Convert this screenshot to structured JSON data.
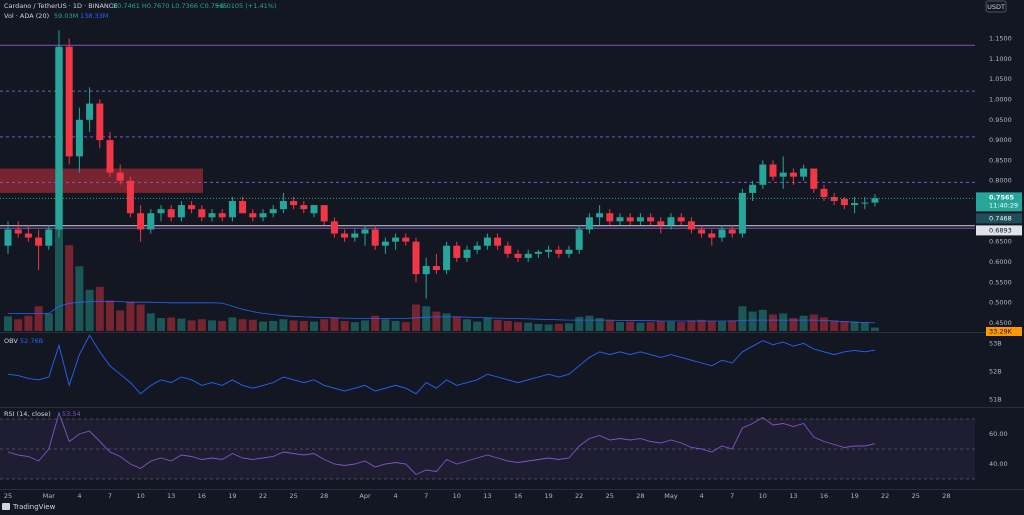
{
  "chart_data": [
    {
      "type": "candlestick",
      "title": "Cardano / TetherUS · 1D · BINANCE",
      "legend": {
        "ohlc": "O0.7461 H0.7670 L0.7366 C0.7565",
        "change": "+0.0105 (+1.41%)",
        "volume": "Vol · ADA (20)",
        "volume_value": "59.03M",
        "volume_ma_value": "138.33M"
      },
      "unit": "USDT",
      "categories": [
        "25",
        null,
        null,
        null,
        "Mar",
        null,
        null,
        "4",
        null,
        null,
        "7",
        null,
        null,
        "10",
        null,
        null,
        "13",
        null,
        null,
        "16",
        null,
        null,
        "19",
        null,
        null,
        "22",
        null,
        null,
        "25",
        null,
        null,
        "28",
        null,
        null,
        null,
        "Apr",
        null,
        null,
        "4",
        null,
        null,
        "7",
        null,
        null,
        "10",
        null,
        null,
        "13",
        null,
        null,
        "16",
        null,
        null,
        "19",
        null,
        null,
        "22",
        null,
        null,
        "25",
        null,
        null,
        "28",
        null,
        null,
        "May",
        null,
        null,
        "4",
        null,
        null,
        "7",
        null,
        null,
        "10",
        null,
        null,
        "13",
        null,
        null,
        "16",
        null,
        null,
        "19",
        null,
        null,
        "22",
        null,
        null,
        "25",
        null,
        null,
        "28"
      ],
      "open": [
        0.64,
        0.68,
        0.67,
        0.66,
        0.64,
        0.68,
        1.13,
        0.86,
        0.95,
        0.99,
        0.9,
        0.82,
        0.8,
        0.72,
        0.68,
        0.72,
        0.73,
        0.71,
        0.74,
        0.73,
        0.71,
        0.72,
        0.71,
        0.75,
        0.72,
        0.71,
        0.72,
        0.73,
        0.75,
        0.74,
        0.72,
        0.74,
        0.7,
        0.67,
        0.66,
        0.67,
        0.68,
        0.64,
        0.65,
        0.66,
        0.65,
        0.57,
        0.59,
        0.58,
        0.64,
        0.61,
        0.63,
        0.64,
        0.66,
        0.64,
        0.62,
        0.61,
        0.62,
        0.625,
        0.63,
        0.62,
        0.63,
        0.68,
        0.71,
        0.72,
        0.7,
        0.71,
        0.7,
        0.71,
        0.7,
        0.69,
        0.71,
        0.7,
        0.68,
        0.67,
        0.66,
        0.68,
        0.67,
        0.77,
        0.79,
        0.84,
        0.81,
        0.82,
        0.81,
        0.83,
        0.78,
        0.76,
        0.755,
        0.74,
        0.745,
        0.7461,
        null,
        null,
        null,
        null,
        null,
        null,
        null
      ],
      "high": [
        0.7,
        0.7,
        0.69,
        0.68,
        0.69,
        1.17,
        1.15,
        0.98,
        1.03,
        1.0,
        0.92,
        0.84,
        0.81,
        0.74,
        0.73,
        0.74,
        0.74,
        0.75,
        0.75,
        0.74,
        0.73,
        0.73,
        0.76,
        0.76,
        0.73,
        0.73,
        0.74,
        0.77,
        0.76,
        0.75,
        0.74,
        0.74,
        0.71,
        0.68,
        0.68,
        0.69,
        0.69,
        0.66,
        0.67,
        0.67,
        0.66,
        0.61,
        0.62,
        0.65,
        0.65,
        0.64,
        0.65,
        0.67,
        0.67,
        0.65,
        0.63,
        0.63,
        0.63,
        0.64,
        0.64,
        0.64,
        0.69,
        0.72,
        0.74,
        0.73,
        0.72,
        0.72,
        0.72,
        0.72,
        0.71,
        0.72,
        0.72,
        0.71,
        0.69,
        0.68,
        0.69,
        0.69,
        0.78,
        0.8,
        0.85,
        0.85,
        0.86,
        0.83,
        0.84,
        0.83,
        0.79,
        0.77,
        0.76,
        0.76,
        0.76,
        0.767,
        null,
        null,
        null,
        null,
        null,
        null,
        null
      ],
      "low": [
        0.62,
        0.66,
        0.65,
        0.58,
        0.63,
        0.66,
        0.84,
        0.82,
        0.92,
        0.88,
        0.81,
        0.79,
        0.71,
        0.65,
        0.67,
        0.7,
        0.7,
        0.7,
        0.72,
        0.7,
        0.7,
        0.7,
        0.7,
        0.72,
        0.7,
        0.7,
        0.71,
        0.72,
        0.73,
        0.72,
        0.71,
        0.69,
        0.66,
        0.65,
        0.65,
        0.64,
        0.63,
        0.62,
        0.63,
        0.64,
        0.55,
        0.51,
        0.57,
        0.57,
        0.6,
        0.6,
        0.62,
        0.63,
        0.63,
        0.61,
        0.6,
        0.6,
        0.61,
        0.61,
        0.61,
        0.61,
        0.62,
        0.67,
        0.69,
        0.69,
        0.69,
        0.69,
        0.69,
        0.69,
        0.67,
        0.68,
        0.69,
        0.67,
        0.66,
        0.64,
        0.65,
        0.66,
        0.66,
        0.75,
        0.78,
        0.8,
        0.78,
        0.79,
        0.8,
        0.77,
        0.75,
        0.74,
        0.73,
        0.72,
        0.73,
        0.7366,
        null,
        null,
        null,
        null,
        null,
        null,
        null
      ],
      "close": [
        0.68,
        0.67,
        0.66,
        0.64,
        0.68,
        1.13,
        0.86,
        0.95,
        0.99,
        0.9,
        0.82,
        0.8,
        0.72,
        0.68,
        0.72,
        0.73,
        0.71,
        0.74,
        0.73,
        0.71,
        0.72,
        0.71,
        0.75,
        0.72,
        0.71,
        0.72,
        0.73,
        0.75,
        0.74,
        0.73,
        0.74,
        0.7,
        0.67,
        0.66,
        0.67,
        0.68,
        0.64,
        0.65,
        0.66,
        0.65,
        0.57,
        0.59,
        0.58,
        0.64,
        0.61,
        0.63,
        0.64,
        0.66,
        0.64,
        0.62,
        0.61,
        0.62,
        0.625,
        0.63,
        0.62,
        0.63,
        0.68,
        0.71,
        0.72,
        0.7,
        0.71,
        0.7,
        0.71,
        0.7,
        0.69,
        0.71,
        0.7,
        0.68,
        0.67,
        0.66,
        0.68,
        0.67,
        0.77,
        0.79,
        0.84,
        0.81,
        0.82,
        0.81,
        0.83,
        0.78,
        0.76,
        0.75,
        0.74,
        0.745,
        0.7461,
        0.7565,
        null,
        null,
        null,
        null,
        null,
        null,
        null
      ],
      "volume": [
        250,
        200,
        260,
        420,
        300,
        4800,
        1460,
        1100,
        700,
        750,
        520,
        350,
        500,
        450,
        300,
        220,
        230,
        210,
        180,
        200,
        180,
        170,
        230,
        200,
        190,
        160,
        170,
        200,
        180,
        170,
        160,
        200,
        230,
        170,
        150,
        180,
        260,
        200,
        170,
        150,
        450,
        420,
        330,
        300,
        250,
        200,
        160,
        230,
        190,
        170,
        150,
        140,
        120,
        110,
        120,
        130,
        240,
        260,
        220,
        180,
        150,
        160,
        140,
        150,
        170,
        160,
        150,
        180,
        190,
        170,
        160,
        180,
        420,
        330,
        360,
        280,
        300,
        220,
        260,
        280,
        230,
        180,
        170,
        160,
        150,
        59.03,
        null,
        null,
        null,
        null,
        null,
        null,
        null
      ],
      "volume_ma": [
        300,
        300,
        300,
        300,
        300,
        420,
        470,
        490,
        500,
        500,
        500,
        500,
        490,
        490,
        490,
        485,
        480,
        480,
        480,
        480,
        480,
        475,
        420,
        370,
        330,
        300,
        280,
        260,
        250,
        240,
        235,
        230,
        225,
        220,
        215,
        215,
        215,
        215,
        215,
        215,
        225,
        235,
        240,
        240,
        240,
        235,
        230,
        225,
        220,
        215,
        210,
        205,
        200,
        195,
        190,
        185,
        185,
        185,
        185,
        185,
        180,
        180,
        175,
        175,
        170,
        170,
        170,
        170,
        170,
        170,
        170,
        170,
        180,
        185,
        185,
        185,
        185,
        185,
        185,
        185,
        180,
        170,
        160,
        150,
        145,
        138.33,
        null,
        null,
        null,
        null,
        null,
        null,
        null
      ],
      "up_color": "#26a69a",
      "down_color": "#f23645",
      "volume_ma_color": "#2962ff",
      "ylim": [
        0.43,
        1.245
      ],
      "yticks": [
        {
          "value": 1.15,
          "label": "1.1500"
        },
        {
          "value": 1.1,
          "label": "1.1000"
        },
        {
          "value": 1.05,
          "label": "1.0500"
        },
        {
          "value": 1.0,
          "label": "1.0000"
        },
        {
          "value": 0.95,
          "label": "0.9500"
        },
        {
          "value": 0.9,
          "label": "0.9000"
        },
        {
          "value": 0.85,
          "label": "0.8500"
        },
        {
          "value": 0.8,
          "label": "0.8000"
        },
        {
          "value": 0.75,
          "label": "0.7500"
        },
        {
          "value": 0.7,
          "label": "0.7000"
        },
        {
          "value": 0.65,
          "label": "0.6500"
        },
        {
          "value": 0.6,
          "label": "0.6000"
        },
        {
          "value": 0.55,
          "label": "0.5500"
        },
        {
          "value": 0.5,
          "label": "0.5000"
        },
        {
          "value": 0.45,
          "label": "0.4500"
        }
      ],
      "zone": {
        "high": 0.83,
        "low": 0.77,
        "color": "#f23645"
      },
      "levels": [
        {
          "value": 1.1335,
          "style": "solid",
          "color": "#7e57c2"
        },
        {
          "value": 1.0205,
          "style": "dashed",
          "color": "#7e57c2"
        },
        {
          "value": 0.908,
          "style": "dashed",
          "color": "#7e57c2"
        },
        {
          "value": 0.796,
          "style": "dashed",
          "color": "#7e57c2"
        },
        {
          "value": 0.6893,
          "style": "solid",
          "color": "#d1d4dc"
        },
        {
          "value": 0.683,
          "style": "solid",
          "color": "#7e57c2"
        }
      ],
      "last_price": {
        "value": 0.7565,
        "label": "0.7565"
      },
      "countdown": "11:40:29",
      "price_tags": [
        {
          "value": 0.7468,
          "label": "0.7468",
          "color": "#1f4e5a"
        },
        {
          "value": 0.6893,
          "label": "0.6893",
          "color": "#e0e3eb"
        }
      ],
      "extra_tag": "33.29K"
    },
    {
      "type": "line",
      "title": "OBV",
      "last_value_label": "52.76B",
      "color": "#2962ff",
      "values": [
        51.9,
        51.85,
        51.75,
        51.7,
        51.8,
        52.93,
        51.5,
        52.6,
        53.29,
        52.7,
        52.2,
        51.9,
        51.6,
        51.2,
        51.5,
        51.7,
        51.6,
        51.8,
        51.7,
        51.5,
        51.6,
        51.5,
        51.7,
        51.5,
        51.4,
        51.5,
        51.6,
        51.8,
        51.7,
        51.6,
        51.7,
        51.5,
        51.4,
        51.3,
        51.4,
        51.5,
        51.3,
        51.4,
        51.5,
        51.4,
        51.2,
        51.6,
        51.4,
        51.7,
        51.5,
        51.6,
        51.7,
        51.9,
        51.8,
        51.7,
        51.6,
        51.7,
        51.8,
        51.9,
        51.8,
        51.9,
        52.2,
        52.5,
        52.7,
        52.6,
        52.7,
        52.6,
        52.7,
        52.6,
        52.5,
        52.6,
        52.5,
        52.4,
        52.3,
        52.2,
        52.4,
        52.3,
        52.7,
        52.9,
        53.1,
        52.95,
        53.05,
        52.9,
        53.0,
        52.8,
        52.7,
        52.6,
        52.7,
        52.75,
        52.7,
        52.76
      ],
      "ylim": [
        50.8,
        53.3
      ],
      "yticks": [
        {
          "value": 53,
          "label": "53B"
        },
        {
          "value": 52,
          "label": "52B"
        },
        {
          "value": 51,
          "label": "51B"
        }
      ]
    },
    {
      "type": "line",
      "title": "RSI (14, close)",
      "last_value_label": "53.54",
      "color": "#7e57c2",
      "values": [
        48,
        46,
        45,
        42,
        50,
        74,
        55,
        60,
        62,
        55,
        48,
        45,
        40,
        37,
        42,
        44,
        42,
        46,
        45,
        43,
        44,
        43,
        47,
        44,
        43,
        44,
        45,
        48,
        47,
        46,
        47,
        43,
        40,
        39,
        40,
        42,
        38,
        40,
        41,
        40,
        33,
        36,
        35,
        43,
        40,
        42,
        44,
        46,
        44,
        42,
        41,
        42,
        43,
        44,
        43,
        44,
        52,
        57,
        59,
        56,
        57,
        56,
        57,
        55,
        54,
        56,
        54,
        51,
        50,
        48,
        52,
        50,
        64,
        67,
        71,
        66,
        67,
        65,
        67,
        58,
        55,
        53,
        51,
        52,
        52,
        53.54
      ],
      "bands": [
        70,
        50,
        30
      ],
      "ylim": [
        24,
        76
      ],
      "yticks": [
        {
          "value": 60,
          "label": "60.00"
        },
        {
          "value": 40,
          "label": "40.00"
        }
      ]
    }
  ],
  "footer": "TradingView"
}
